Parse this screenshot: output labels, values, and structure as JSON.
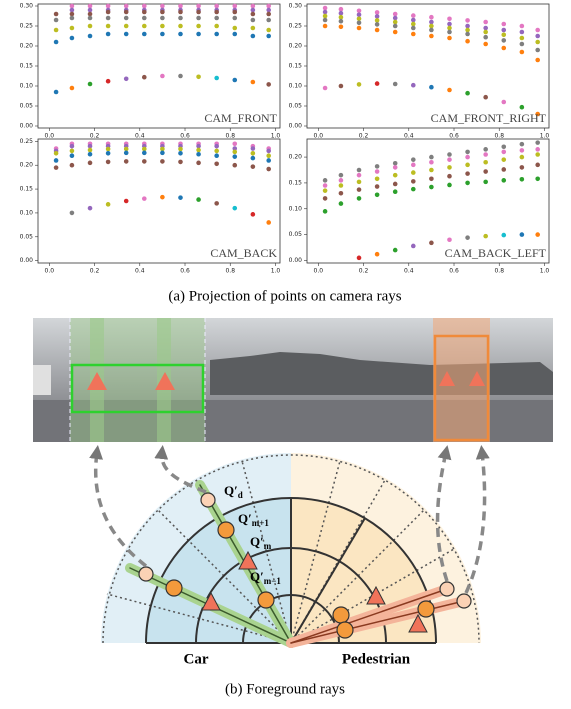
{
  "chart_data": [
    {
      "type": "scatter",
      "title": "CAM_FRONT",
      "x": [
        0.03,
        0.1,
        0.18,
        0.26,
        0.34,
        0.42,
        0.5,
        0.58,
        0.66,
        0.74,
        0.82,
        0.9,
        0.97
      ],
      "series": [
        {
          "color": "#e377c2",
          "values": [
            null,
            0.3,
            0.3,
            0.3,
            0.3,
            0.3,
            0.3,
            0.3,
            0.3,
            0.3,
            0.3,
            0.3,
            0.3
          ]
        },
        {
          "color": "#9467bd",
          "values": [
            null,
            0.29,
            0.29,
            0.29,
            0.29,
            0.29,
            0.29,
            0.29,
            0.29,
            0.29,
            0.29,
            0.29,
            0.29
          ]
        },
        {
          "color": "#8c564b",
          "values": [
            0.28,
            0.28,
            0.28,
            0.285,
            0.285,
            0.285,
            0.285,
            0.285,
            0.285,
            0.285,
            0.285,
            0.28,
            0.28
          ]
        },
        {
          "color": "#7f7f7f",
          "values": [
            0.265,
            0.27,
            0.27,
            0.27,
            0.27,
            0.27,
            0.27,
            0.27,
            0.27,
            0.27,
            0.27,
            0.265,
            0.265
          ]
        },
        {
          "color": "#bcbd22",
          "values": [
            0.24,
            0.245,
            0.25,
            0.25,
            0.25,
            0.25,
            0.25,
            0.25,
            0.25,
            0.25,
            0.245,
            0.245,
            0.24
          ]
        },
        {
          "color": "#1f77b4",
          "values": [
            0.21,
            0.22,
            0.225,
            0.23,
            0.23,
            0.23,
            0.23,
            0.23,
            0.23,
            0.23,
            0.23,
            0.225,
            0.225
          ]
        },
        {
          "colors": [
            "#1f77b4",
            "#ff7f0e",
            "#2ca02c",
            "#d62728",
            "#9467bd",
            "#8c564b",
            "#e377c2",
            "#7f7f7f",
            "#bcbd22",
            "#17becf",
            "#1f77b4",
            "#ff7f0e",
            "#8c564b"
          ],
          "values": [
            0.085,
            0.095,
            0.105,
            0.112,
            0.118,
            0.122,
            0.125,
            0.125,
            0.123,
            0.12,
            0.115,
            0.11,
            0.104
          ]
        }
      ],
      "xlim": [
        -0.05,
        1.02
      ],
      "ylim": [
        -0.005,
        0.305
      ],
      "xticks": [
        {
          "value": 0,
          "label": "0.0"
        },
        0.2,
        0.4,
        0.6,
        0.8,
        {
          "value": 1,
          "label": "1.0"
        }
      ],
      "yticks": [
        {
          "value": 0,
          "label": "0.00"
        },
        0.05,
        {
          "value": 0.1,
          "label": "0.10"
        },
        0.15,
        {
          "value": 0.2,
          "label": "0.20"
        },
        0.25,
        {
          "value": 0.3,
          "label": "0.30"
        }
      ]
    },
    {
      "type": "scatter",
      "title": "CAM_FRONT_RIGHT",
      "x": [
        0.03,
        0.1,
        0.18,
        0.26,
        0.34,
        0.42,
        0.5,
        0.58,
        0.66,
        0.74,
        0.82,
        0.9,
        0.97
      ],
      "series": [
        {
          "color": "#e377c2",
          "values": [
            0.295,
            0.292,
            0.288,
            0.284,
            0.28,
            0.276,
            0.272,
            0.268,
            0.264,
            0.26,
            0.255,
            0.25,
            0.24
          ]
        },
        {
          "color": "#9467bd",
          "values": [
            0.285,
            0.282,
            0.278,
            0.274,
            0.27,
            0.265,
            0.26,
            0.255,
            0.25,
            0.245,
            0.24,
            0.235,
            0.225
          ]
        },
        {
          "color": "#bcbd22",
          "values": [
            0.275,
            0.272,
            0.268,
            0.264,
            0.26,
            0.255,
            0.25,
            0.245,
            0.24,
            0.235,
            0.228,
            0.22,
            0.21
          ]
        },
        {
          "color": "#7f7f7f",
          "values": [
            0.265,
            0.262,
            0.258,
            0.254,
            0.25,
            0.245,
            0.24,
            0.235,
            0.23,
            0.222,
            0.214,
            0.205,
            0.19
          ]
        },
        {
          "color": "#ff7f0e",
          "values": [
            0.25,
            0.248,
            0.245,
            0.24,
            0.235,
            0.23,
            0.225,
            0.22,
            0.212,
            0.205,
            0.195,
            0.185,
            0.165
          ]
        },
        {
          "colors": [
            "#e377c2",
            "#8c564b",
            "#bcbd22",
            "#d62728",
            "#7f7f7f",
            "#9467bd",
            "#1f77b4",
            "#ff7f0e",
            "#2ca02c",
            "#8c564b",
            "#e377c2",
            "#2ca02c",
            "#ff7f0e"
          ],
          "values": [
            0.095,
            0.1,
            0.104,
            0.106,
            0.105,
            0.102,
            0.097,
            0.09,
            0.082,
            0.072,
            0.06,
            0.047,
            0.03
          ]
        }
      ],
      "xlim": [
        -0.05,
        1.02
      ],
      "ylim": [
        -0.005,
        0.305
      ],
      "xticks": [
        {
          "value": 0,
          "label": "0.0"
        },
        0.2,
        0.4,
        0.6,
        0.8,
        {
          "value": 1,
          "label": "1.0"
        }
      ],
      "yticks": [
        {
          "value": 0,
          "label": "0.00"
        },
        0.05,
        {
          "value": 0.1,
          "label": "0.10"
        },
        0.15,
        {
          "value": 0.2,
          "label": "0.20"
        },
        0.25,
        {
          "value": 0.3,
          "label": "0.30"
        }
      ]
    },
    {
      "type": "scatter",
      "title": "CAM_BACK",
      "x": [
        0.03,
        0.1,
        0.18,
        0.26,
        0.34,
        0.42,
        0.5,
        0.58,
        0.66,
        0.74,
        0.82,
        0.9,
        0.97
      ],
      "series": [
        {
          "color": "#e377c2",
          "values": [
            0.235,
            0.245,
            0.245,
            0.245,
            0.245,
            0.245,
            0.245,
            0.245,
            0.245,
            0.245,
            0.245,
            0.24,
            0.235
          ]
        },
        {
          "color": "#9467bd",
          "values": [
            0.23,
            0.24,
            0.24,
            0.24,
            0.24,
            0.24,
            0.24,
            0.24,
            0.24,
            0.24,
            0.235,
            0.235,
            0.23
          ]
        },
        {
          "color": "#bcbd22",
          "values": [
            0.225,
            0.23,
            0.232,
            0.234,
            0.234,
            0.234,
            0.234,
            0.234,
            0.232,
            0.23,
            0.228,
            0.225,
            0.22
          ]
        },
        {
          "color": "#1f77b4",
          "values": [
            0.21,
            0.22,
            0.223,
            0.225,
            0.226,
            0.226,
            0.226,
            0.225,
            0.223,
            0.22,
            0.218,
            0.215,
            0.21
          ]
        },
        {
          "color": "#8c564b",
          "values": [
            0.195,
            0.2,
            0.205,
            0.207,
            0.208,
            0.208,
            0.208,
            0.207,
            0.205,
            0.203,
            0.2,
            0.197,
            0.192
          ]
        },
        {
          "colors": [
            "#7f7f7f",
            "#7f7f7f",
            "#9467bd",
            "#bcbd22",
            "#d62728",
            "#e377c2",
            "#ff7f0e",
            "#1f77b4",
            "#2ca02c",
            "#8c564b",
            "#17becf",
            "#d62728",
            "#ff7f0e"
          ],
          "values": [
            null,
            0.1,
            0.11,
            0.118,
            0.125,
            0.13,
            0.133,
            0.132,
            0.128,
            0.12,
            0.11,
            0.097,
            0.08
          ]
        }
      ],
      "xlim": [
        -0.05,
        1.02
      ],
      "ylim": [
        -0.005,
        0.255
      ],
      "xticks": [
        {
          "value": 0,
          "label": "0.0"
        },
        0.2,
        0.4,
        0.6,
        0.8,
        {
          "value": 1,
          "label": "1.0"
        }
      ],
      "yticks": [
        {
          "value": 0,
          "label": "0.00"
        },
        0.05,
        {
          "value": 0.1,
          "label": "0.10"
        },
        0.15,
        {
          "value": 0.2,
          "label": "0.20"
        },
        0.25
      ]
    },
    {
      "type": "scatter",
      "title": "CAM_BACK_LEFT",
      "x": [
        0.03,
        0.1,
        0.18,
        0.26,
        0.34,
        0.42,
        0.5,
        0.58,
        0.66,
        0.74,
        0.82,
        0.9,
        0.97
      ],
      "series": [
        {
          "color": "#7f7f7f",
          "values": [
            0.155,
            0.165,
            0.175,
            0.182,
            0.188,
            0.195,
            0.2,
            0.205,
            0.21,
            0.215,
            0.22,
            0.225,
            0.228
          ]
        },
        {
          "color": "#e377c2",
          "values": [
            0.145,
            0.155,
            0.165,
            0.172,
            0.18,
            0.185,
            0.19,
            0.195,
            0.2,
            0.205,
            0.21,
            0.213,
            0.215
          ]
        },
        {
          "color": "#bcbd22",
          "values": [
            0.135,
            0.145,
            0.152,
            0.158,
            0.165,
            0.17,
            0.175,
            0.18,
            0.185,
            0.19,
            0.195,
            0.2,
            0.205
          ]
        },
        {
          "color": "#8c564b",
          "values": [
            0.12,
            0.13,
            0.137,
            0.143,
            0.148,
            0.153,
            0.158,
            0.163,
            0.168,
            0.172,
            0.176,
            0.18,
            0.185
          ]
        },
        {
          "color": "#2ca02c",
          "values": [
            0.095,
            0.11,
            0.12,
            0.127,
            0.133,
            0.138,
            0.142,
            0.146,
            0.15,
            0.152,
            0.155,
            0.157,
            0.158
          ]
        },
        {
          "colors": [
            "#d62728",
            "#d62728",
            "#d62728",
            "#ff7f0e",
            "#2ca02c",
            "#9467bd",
            "#8c564b",
            "#e377c2",
            "#7f7f7f",
            "#bcbd22",
            "#17becf",
            "#1f77b4",
            "#ff7f0e"
          ],
          "values": [
            null,
            null,
            0.005,
            0.012,
            0.02,
            0.028,
            0.034,
            0.04,
            0.044,
            0.047,
            0.049,
            0.05,
            0.05
          ]
        }
      ],
      "xlim": [
        -0.05,
        1.02
      ],
      "ylim": [
        -0.005,
        0.235
      ],
      "xticks": [
        {
          "value": 0,
          "label": "0.0"
        },
        0.2,
        0.4,
        0.6,
        0.8,
        {
          "value": 1,
          "label": "1.0"
        }
      ],
      "yticks": [
        {
          "value": 0,
          "label": "0.00"
        },
        0.05,
        {
          "value": 0.1,
          "label": "0.10"
        },
        0.15,
        {
          "value": 0.2,
          "label": "0.20"
        }
      ]
    }
  ],
  "captions": {
    "a": "(a) Projection of points on camera rays",
    "b": "(b) Foreground rays"
  },
  "diagram": {
    "car": "Car",
    "pedestrian": "Pedestrian",
    "rays": [
      {
        "base": "Q′",
        "sub": "d"
      },
      {
        "base": "Q′",
        "sub": "m+1"
      },
      {
        "base": "Q′",
        "sub": "m"
      },
      {
        "base": "Q′",
        "sub": "m−1"
      }
    ]
  }
}
